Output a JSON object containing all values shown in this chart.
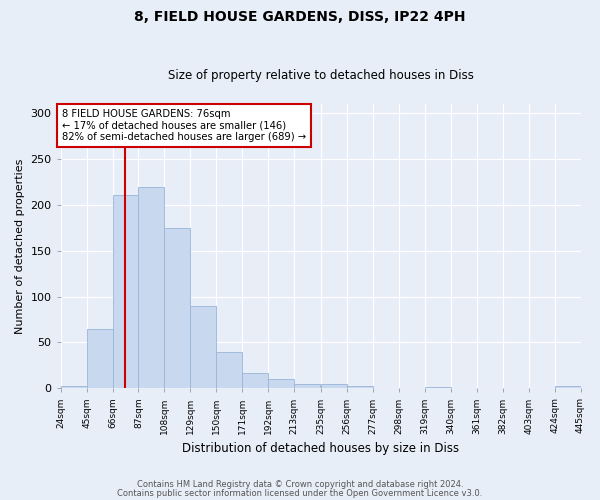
{
  "title1": "8, FIELD HOUSE GARDENS, DISS, IP22 4PH",
  "title2": "Size of property relative to detached houses in Diss",
  "xlabel": "Distribution of detached houses by size in Diss",
  "ylabel": "Number of detached properties",
  "bar_color": "#c8d9ef",
  "bar_edge_color": "#9ab5d8",
  "background_color": "#e8eef8",
  "grid_color": "#ffffff",
  "vline_color": "#cc0000",
  "vline_x": 76,
  "annotation_text": "8 FIELD HOUSE GARDENS: 76sqm\n← 17% of detached houses are smaller (146)\n82% of semi-detached houses are larger (689) →",
  "annotation_box_color": "#ffffff",
  "annotation_box_edge": "#cc0000",
  "bins": [
    24,
    45,
    66,
    87,
    108,
    129,
    150,
    171,
    192,
    213,
    235,
    256,
    277,
    298,
    319,
    340,
    361,
    382,
    403,
    424,
    445
  ],
  "counts": [
    2,
    65,
    211,
    220,
    175,
    90,
    40,
    17,
    10,
    5,
    5,
    3,
    0,
    0,
    1,
    0,
    0,
    0,
    0,
    2
  ],
  "tick_labels": [
    "24sqm",
    "45sqm",
    "66sqm",
    "87sqm",
    "108sqm",
    "129sqm",
    "150sqm",
    "171sqm",
    "192sqm",
    "213sqm",
    "235sqm",
    "256sqm",
    "277sqm",
    "298sqm",
    "319sqm",
    "340sqm",
    "361sqm",
    "382sqm",
    "403sqm",
    "424sqm",
    "445sqm"
  ],
  "ylim": [
    0,
    310
  ],
  "yticks": [
    0,
    50,
    100,
    150,
    200,
    250,
    300
  ],
  "footer1": "Contains HM Land Registry data © Crown copyright and database right 2024.",
  "footer2": "Contains public sector information licensed under the Open Government Licence v3.0."
}
